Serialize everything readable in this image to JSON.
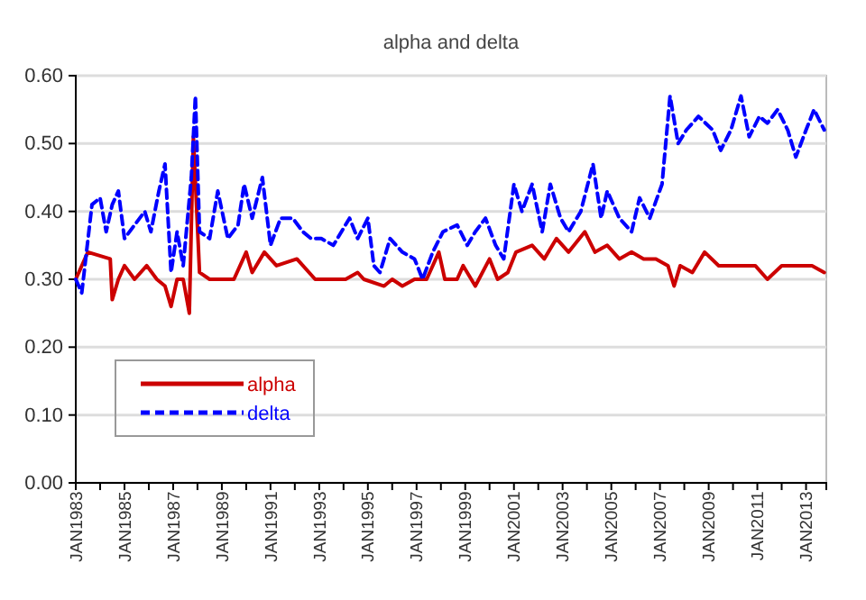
{
  "chart_data": {
    "type": "line",
    "title": "alpha and delta",
    "xlim": [
      "1983-01",
      "2013-11"
    ],
    "xticks": [
      {
        "value": "1983-01",
        "label": "JAN1983"
      },
      {
        "value": "1984-01",
        "label": null
      },
      {
        "value": "1985-01",
        "label": "JAN1985"
      },
      {
        "value": "1986-01",
        "label": null
      },
      {
        "value": "1987-01",
        "label": "JAN1987"
      },
      {
        "value": "1988-01",
        "label": null
      },
      {
        "value": "1989-01",
        "label": "JAN1989"
      },
      {
        "value": "1990-01",
        "label": null
      },
      {
        "value": "1991-01",
        "label": "JAN1991"
      },
      {
        "value": "1992-01",
        "label": null
      },
      {
        "value": "1993-01",
        "label": "JAN1993"
      },
      {
        "value": "1994-01",
        "label": null
      },
      {
        "value": "1995-01",
        "label": "JAN1995"
      },
      {
        "value": "1996-01",
        "label": null
      },
      {
        "value": "1997-01",
        "label": "JAN1997"
      },
      {
        "value": "1998-01",
        "label": null
      },
      {
        "value": "1999-01",
        "label": "JAN1999"
      },
      {
        "value": "2000-01",
        "label": null
      },
      {
        "value": "2001-01",
        "label": "JAN2001"
      },
      {
        "value": "2002-01",
        "label": null
      },
      {
        "value": "2003-01",
        "label": "JAN2003"
      },
      {
        "value": "2004-01",
        "label": null
      },
      {
        "value": "2005-01",
        "label": "JAN2005"
      },
      {
        "value": "2006-01",
        "label": null
      },
      {
        "value": "2007-01",
        "label": "JAN2007"
      },
      {
        "value": "2008-01",
        "label": null
      },
      {
        "value": "2009-01",
        "label": "JAN2009"
      },
      {
        "value": "2010-01",
        "label": null
      },
      {
        "value": "2011-01",
        "label": "JAN2011"
      },
      {
        "value": "2012-01",
        "label": null
      },
      {
        "value": "2013-01",
        "label": "JAN2013"
      }
    ],
    "ylim": [
      0,
      0.6
    ],
    "yticks": [
      {
        "value": 0,
        "label": "0.00"
      },
      {
        "value": 0.1,
        "label": "0.10"
      },
      {
        "value": 0.2,
        "label": "0.20"
      },
      {
        "value": 0.3,
        "label": "0.30"
      },
      {
        "value": 0.4,
        "label": "0.40"
      },
      {
        "value": 0.5,
        "label": "0.50"
      },
      {
        "value": 0.6,
        "label": "0.60"
      }
    ],
    "grid": "y",
    "legend": "bottom left",
    "marker": "none",
    "series": [
      {
        "name": "alpha",
        "color": "#cc0000",
        "line_style": "solid",
        "x": [
          "1983-01",
          "1983-07",
          "1984-06",
          "1984-07",
          "1984-10",
          "1985-01",
          "1985-06",
          "1985-12",
          "1986-05",
          "1986-09",
          "1986-12",
          "1987-03",
          "1987-06",
          "1987-09",
          "1987-11",
          "1988-02",
          "1988-07",
          "1989-01",
          "1989-07",
          "1990-01",
          "1990-04",
          "1990-10",
          "1991-04",
          "1992-02",
          "1992-11",
          "1993-08",
          "1994-02",
          "1994-08",
          "1994-11",
          "1995-09",
          "1996-01",
          "1996-06",
          "1996-12",
          "1997-06",
          "1997-12",
          "1998-03",
          "1998-09",
          "1998-12",
          "1999-06",
          "2000-01",
          "2000-05",
          "2000-10",
          "2001-02",
          "2001-10",
          "2002-04",
          "2002-10",
          "2003-04",
          "2003-12",
          "2004-05",
          "2004-11",
          "2005-05",
          "2005-11",
          "2006-05",
          "2006-11",
          "2007-05",
          "2007-08",
          "2007-11",
          "2008-05",
          "2008-11",
          "2009-06",
          "2010-03",
          "2010-12",
          "2011-06",
          "2012-01",
          "2012-10",
          "2013-04",
          "2013-10"
        ],
        "values": [
          0.3,
          0.34,
          0.33,
          0.27,
          0.3,
          0.32,
          0.3,
          0.32,
          0.3,
          0.29,
          0.26,
          0.3,
          0.3,
          0.25,
          0.51,
          0.31,
          0.3,
          0.3,
          0.3,
          0.34,
          0.31,
          0.34,
          0.32,
          0.33,
          0.3,
          0.3,
          0.3,
          0.31,
          0.3,
          0.29,
          0.3,
          0.29,
          0.3,
          0.3,
          0.34,
          0.3,
          0.3,
          0.32,
          0.29,
          0.33,
          0.3,
          0.31,
          0.34,
          0.35,
          0.33,
          0.36,
          0.34,
          0.37,
          0.34,
          0.35,
          0.33,
          0.34,
          0.33,
          0.33,
          0.32,
          0.29,
          0.32,
          0.31,
          0.34,
          0.32,
          0.32,
          0.32,
          0.3,
          0.32,
          0.32,
          0.32,
          0.31
        ]
      },
      {
        "name": "delta",
        "color": "#0000ff",
        "line_style": "dashed",
        "x": [
          "1983-01",
          "1983-04",
          "1983-09",
          "1984-01",
          "1984-04",
          "1984-07",
          "1984-10",
          "1985-01",
          "1985-06",
          "1985-11",
          "1986-02",
          "1986-06",
          "1986-09",
          "1986-12",
          "1987-03",
          "1987-06",
          "1987-10",
          "1987-12",
          "1988-02",
          "1988-07",
          "1988-11",
          "1989-04",
          "1989-09",
          "1989-12",
          "1990-04",
          "1990-09",
          "1991-01",
          "1991-06",
          "1991-12",
          "1992-05",
          "1992-09",
          "1993-02",
          "1993-08",
          "1994-04",
          "1994-08",
          "1995-01",
          "1995-04",
          "1995-07",
          "1995-12",
          "1996-06",
          "1996-12",
          "1997-04",
          "1997-09",
          "1998-02",
          "1998-09",
          "1999-02",
          "1999-06",
          "1999-11",
          "2000-04",
          "2000-08",
          "2001-01",
          "2001-05",
          "2001-10",
          "2002-03",
          "2002-07",
          "2002-12",
          "2003-04",
          "2003-10",
          "2004-04",
          "2004-08",
          "2004-11",
          "2005-05",
          "2005-11",
          "2006-03",
          "2006-08",
          "2007-02",
          "2007-06",
          "2007-10",
          "2008-02",
          "2008-08",
          "2009-03",
          "2009-07",
          "2009-12",
          "2010-05",
          "2010-09",
          "2011-02",
          "2011-06",
          "2011-11",
          "2012-04",
          "2012-08",
          "2013-01",
          "2013-05",
          "2013-10"
        ],
        "values": [
          0.3,
          0.28,
          0.41,
          0.42,
          0.37,
          0.41,
          0.43,
          0.36,
          0.38,
          0.4,
          0.37,
          0.43,
          0.47,
          0.31,
          0.37,
          0.32,
          0.45,
          0.57,
          0.37,
          0.36,
          0.43,
          0.36,
          0.38,
          0.44,
          0.39,
          0.45,
          0.35,
          0.39,
          0.39,
          0.37,
          0.36,
          0.36,
          0.35,
          0.39,
          0.36,
          0.39,
          0.32,
          0.31,
          0.36,
          0.34,
          0.33,
          0.3,
          0.34,
          0.37,
          0.38,
          0.35,
          0.37,
          0.39,
          0.35,
          0.33,
          0.44,
          0.4,
          0.44,
          0.37,
          0.44,
          0.39,
          0.37,
          0.4,
          0.47,
          0.39,
          0.43,
          0.39,
          0.37,
          0.42,
          0.39,
          0.44,
          0.57,
          0.5,
          0.52,
          0.54,
          0.52,
          0.49,
          0.52,
          0.57,
          0.51,
          0.54,
          0.53,
          0.55,
          0.52,
          0.48,
          0.52,
          0.55,
          0.52
        ]
      }
    ]
  }
}
